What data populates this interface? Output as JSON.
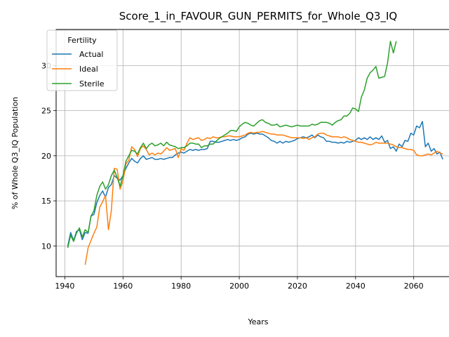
{
  "chart_data": {
    "type": "line",
    "title": "Score_1_in_FAVOUR_GUN_PERMITS_for_Whole_Q3_IQ",
    "xlabel": "Years",
    "ylabel": "% of Whole Q3_IQ Population",
    "xlim": [
      1937,
      2076
    ],
    "ylim": [
      6.6,
      34.0
    ],
    "xticks": [
      1940,
      1960,
      1980,
      2000,
      2020,
      2040,
      2060
    ],
    "yticks": [
      10,
      15,
      20,
      25,
      30
    ],
    "grid": true,
    "legend": {
      "title": "Fertility",
      "placement": "top-left"
    },
    "series": [
      {
        "name": "Actual",
        "color": "#1f77b4",
        "x": [
          1941,
          1942,
          1943,
          1944,
          1945,
          1946,
          1947,
          1948,
          1949,
          1950,
          1951,
          1952,
          1953,
          1954,
          1955,
          1956,
          1957,
          1958,
          1959,
          1960,
          1961,
          1962,
          1963,
          1964,
          1965,
          1966,
          1967,
          1968,
          1969,
          1970,
          1971,
          1972,
          1973,
          1974,
          1975,
          1976,
          1977,
          1978,
          1979,
          1980,
          1981,
          1982,
          1983,
          1984,
          1985,
          1986,
          1987,
          1988,
          1989,
          1990,
          1991,
          1992,
          1993,
          1994,
          1995,
          1996,
          1997,
          1998,
          1999,
          2000,
          2001,
          2002,
          2003,
          2004,
          2005,
          2006,
          2007,
          2008,
          2009,
          2010,
          2011,
          2012,
          2013,
          2014,
          2015,
          2016,
          2017,
          2018,
          2019,
          2020,
          2021,
          2022,
          2023,
          2024,
          2025,
          2026,
          2027,
          2028,
          2029,
          2030,
          2031,
          2032,
          2033,
          2034,
          2035,
          2036,
          2037,
          2038,
          2039,
          2040,
          2041,
          2042,
          2043,
          2044,
          2045,
          2046,
          2047,
          2048,
          2049,
          2050,
          2051,
          2052,
          2053,
          2054,
          2055,
          2056,
          2057,
          2058,
          2059,
          2060,
          2061,
          2062,
          2063,
          2064,
          2065,
          2066,
          2067,
          2068,
          2069,
          2070
        ],
        "y": [
          10.0,
          11.5,
          10.6,
          11.6,
          11.8,
          10.7,
          11.5,
          11.4,
          13.3,
          13.5,
          14.8,
          15.6,
          16.1,
          15.4,
          16.5,
          16.8,
          17.8,
          17.5,
          17.3,
          17.8,
          18.6,
          19.2,
          19.7,
          19.4,
          19.2,
          19.7,
          20.0,
          19.6,
          19.7,
          19.8,
          19.6,
          19.6,
          19.7,
          19.6,
          19.7,
          19.8,
          19.8,
          20.1,
          20.3,
          20.4,
          20.3,
          20.5,
          20.7,
          20.6,
          20.7,
          20.6,
          20.7,
          20.7,
          20.8,
          21.6,
          21.6,
          21.5,
          21.5,
          21.6,
          21.7,
          21.8,
          21.7,
          21.8,
          21.7,
          21.8,
          22.0,
          22.1,
          22.4,
          22.5,
          22.4,
          22.5,
          22.4,
          22.4,
          22.2,
          22.0,
          21.7,
          21.6,
          21.4,
          21.6,
          21.4,
          21.6,
          21.5,
          21.6,
          21.7,
          21.9,
          22.0,
          22.1,
          22.0,
          22.1,
          22.3,
          22.0,
          22.3,
          22.1,
          22.0,
          21.6,
          21.6,
          21.5,
          21.5,
          21.4,
          21.5,
          21.4,
          21.6,
          21.5,
          21.6,
          21.7,
          22.0,
          21.8,
          22.0,
          21.8,
          22.1,
          21.8,
          22.0,
          21.8,
          22.2,
          21.5,
          21.7,
          20.8,
          21.0,
          20.5,
          21.3,
          21.0,
          21.7,
          21.6,
          22.5,
          22.3,
          23.3,
          23.1,
          23.8,
          21.0,
          21.4,
          20.5,
          20.8,
          20.2,
          20.4,
          19.6
        ]
      },
      {
        "name": "Ideal",
        "color": "#ff7f0e",
        "x": [
          1947,
          1948,
          1949,
          1950,
          1951,
          1952,
          1953,
          1954,
          1955,
          1956,
          1957,
          1958,
          1959,
          1960,
          1961,
          1962,
          1963,
          1964,
          1965,
          1966,
          1967,
          1968,
          1969,
          1970,
          1971,
          1972,
          1973,
          1974,
          1975,
          1976,
          1977,
          1978,
          1979,
          1980,
          1981,
          1982,
          1983,
          1984,
          1985,
          1986,
          1987,
          1988,
          1989,
          1990,
          1991,
          1992,
          1993,
          1994,
          1995,
          1996,
          1997,
          1998,
          1999,
          2000,
          2001,
          2002,
          2003,
          2004,
          2005,
          2006,
          2007,
          2008,
          2009,
          2010,
          2011,
          2012,
          2013,
          2014,
          2015,
          2016,
          2017,
          2018,
          2019,
          2020,
          2021,
          2022,
          2023,
          2024,
          2025,
          2026,
          2027,
          2028,
          2029,
          2030,
          2031,
          2032,
          2033,
          2034,
          2035,
          2036,
          2037,
          2038,
          2039,
          2040,
          2041,
          2042,
          2043,
          2044,
          2045,
          2046,
          2047,
          2048,
          2049,
          2050,
          2051,
          2052,
          2053,
          2054,
          2055,
          2056,
          2057,
          2058,
          2059,
          2060,
          2061,
          2062,
          2063,
          2064,
          2065,
          2066,
          2067,
          2068,
          2069,
          2070
        ],
        "y": [
          7.9,
          9.8,
          10.6,
          11.4,
          12.1,
          14.3,
          14.9,
          15.6,
          11.8,
          13.9,
          18.6,
          18.5,
          16.3,
          17.2,
          19.1,
          19.5,
          21.0,
          20.7,
          19.9,
          20.8,
          21.1,
          20.7,
          20.1,
          20.3,
          20.1,
          20.3,
          20.2,
          20.5,
          20.9,
          20.6,
          20.7,
          20.8,
          19.8,
          20.8,
          20.6,
          21.4,
          22.0,
          21.8,
          21.9,
          22.0,
          21.7,
          21.8,
          22.0,
          21.9,
          22.1,
          22.0,
          22.0,
          22.1,
          22.1,
          22.2,
          22.2,
          22.1,
          22.1,
          22.1,
          22.2,
          22.3,
          22.5,
          22.6,
          22.5,
          22.6,
          22.6,
          22.7,
          22.6,
          22.5,
          22.4,
          22.4,
          22.3,
          22.3,
          22.3,
          22.2,
          22.1,
          22.0,
          22.0,
          22.0,
          22.0,
          21.9,
          22.0,
          21.8,
          22.0,
          22.1,
          22.4,
          22.5,
          22.5,
          22.3,
          22.2,
          22.1,
          22.1,
          22.1,
          22.0,
          22.1,
          22.0,
          21.8,
          21.7,
          21.6,
          21.5,
          21.5,
          21.4,
          21.3,
          21.2,
          21.3,
          21.5,
          21.4,
          21.4,
          21.4,
          21.4,
          21.3,
          21.2,
          21.0,
          20.9,
          20.9,
          20.8,
          20.7,
          20.7,
          20.6,
          20.1,
          20.0,
          20.0,
          20.1,
          20.2,
          20.1,
          20.3,
          20.5,
          20.3,
          20.2
        ]
      },
      {
        "name": "Sterile",
        "color": "#2ca02c",
        "x": [
          1941,
          1942,
          1943,
          1944,
          1945,
          1946,
          1947,
          1948,
          1949,
          1950,
          1951,
          1952,
          1953,
          1954,
          1955,
          1956,
          1957,
          1958,
          1959,
          1960,
          1961,
          1962,
          1963,
          1964,
          1965,
          1966,
          1967,
          1968,
          1969,
          1970,
          1971,
          1972,
          1973,
          1974,
          1975,
          1976,
          1977,
          1978,
          1979,
          1980,
          1981,
          1982,
          1983,
          1984,
          1985,
          1986,
          1987,
          1988,
          1989,
          1990,
          1991,
          1992,
          1993,
          1994,
          1995,
          1996,
          1997,
          1998,
          1999,
          2000,
          2001,
          2002,
          2003,
          2004,
          2005,
          2006,
          2007,
          2008,
          2009,
          2010,
          2011,
          2012,
          2013,
          2014,
          2015,
          2016,
          2017,
          2018,
          2019,
          2020,
          2021,
          2022,
          2023,
          2024,
          2025,
          2026,
          2027,
          2028,
          2029,
          2030,
          2031,
          2032,
          2033,
          2034,
          2035,
          2036,
          2037,
          2038,
          2039,
          2040,
          2041,
          2042,
          2043,
          2044,
          2045,
          2046,
          2047,
          2048,
          2049,
          2050,
          2051,
          2052,
          2053,
          2054
        ],
        "y": [
          9.8,
          11.2,
          10.5,
          11.4,
          12.0,
          11.0,
          11.8,
          11.5,
          13.3,
          13.9,
          15.6,
          16.6,
          17.1,
          16.3,
          16.8,
          17.8,
          18.4,
          17.6,
          16.6,
          17.8,
          19.4,
          20.0,
          20.6,
          20.5,
          20.2,
          20.9,
          21.4,
          20.8,
          21.2,
          21.4,
          21.1,
          21.2,
          21.4,
          21.1,
          21.5,
          21.2,
          21.1,
          21.0,
          20.8,
          20.9,
          20.9,
          21.1,
          21.4,
          21.4,
          21.3,
          21.3,
          20.9,
          21.1,
          21.1,
          21.3,
          21.3,
          21.6,
          21.9,
          22.1,
          22.3,
          22.5,
          22.8,
          22.8,
          22.7,
          23.2,
          23.5,
          23.7,
          23.6,
          23.4,
          23.3,
          23.6,
          23.9,
          24.0,
          23.7,
          23.6,
          23.4,
          23.4,
          23.5,
          23.2,
          23.3,
          23.4,
          23.3,
          23.2,
          23.3,
          23.4,
          23.3,
          23.3,
          23.3,
          23.3,
          23.5,
          23.4,
          23.5,
          23.7,
          23.7,
          23.7,
          23.6,
          23.4,
          23.7,
          23.9,
          24.0,
          24.4,
          24.4,
          24.7,
          25.3,
          25.2,
          24.9,
          26.5,
          27.3,
          28.6,
          29.2,
          29.5,
          29.9,
          28.6,
          28.7,
          28.8,
          30.3,
          32.7,
          31.4,
          32.7
        ]
      }
    ]
  }
}
